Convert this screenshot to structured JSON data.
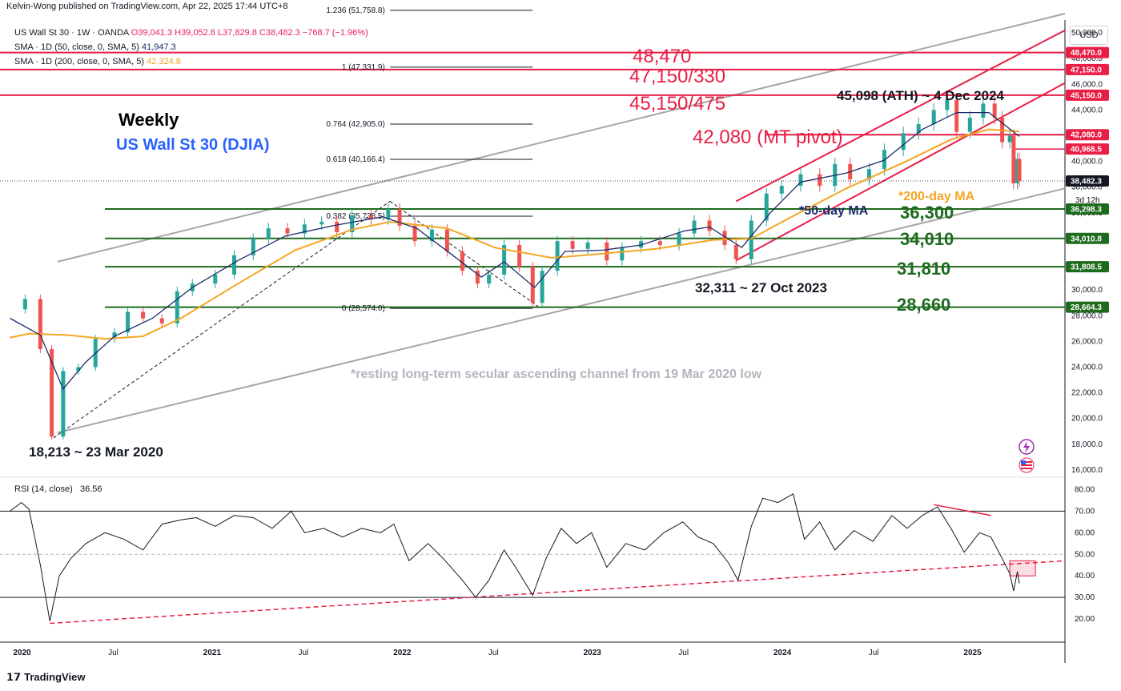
{
  "publisher": "Kelvin-Wong published on TradingView.com, Apr 22, 2025 17:44 UTC+8",
  "legend": {
    "symbol_line": "US Wall St 30 · 1W · OANDA",
    "ohlc": [
      "O39,041.3",
      "H39,052.8",
      "L37,829.8",
      "C38,482.3",
      "−768.7 (−1.96%)"
    ],
    "sma50_label": "SMA · 1D (50, close, 0, SMA, 5)",
    "sma50_value": "41,947.3",
    "sma200_label": "SMA · 1D (200, close, 0, SMA, 5)",
    "sma200_value": "42,324.8",
    "rsi_label": "RSI (14, close)",
    "rsi_value": "36.56"
  },
  "currency": "USD",
  "brand": "TradingView",
  "colors": {
    "up": "#26a69a",
    "down": "#ef5350",
    "sma50": "#1d2c6b",
    "sma200": "#f5a623",
    "resistance": "#e91e46",
    "support": "#1e6b1e",
    "channel": "#a6a6a6"
  },
  "annotations": {
    "weekly": "Weekly",
    "instrument": "US Wall St 30 (DJIA)",
    "low_2020": "18,213 ~ 23 Mar 2020",
    "low_2023": "32,311 ~ 27 Oct 2023",
    "ath": "45,098 (ATH) ~ 4 Dec 2024",
    "sma50_note": "*50-day MA",
    "sma200_note": "*200-day MA",
    "channel_note": "*resting long-term secular ascending channel from 19 Mar 2020 low",
    "r1": "48,470",
    "r2": "47,150/330",
    "r3": "45,150/475",
    "pivot": "42,080 (MT pivot)",
    "s1": "36,300",
    "s2": "34,010",
    "s3": "31,810",
    "s4": "28,660",
    "countdown": "3d 12h"
  },
  "chart_data": {
    "type": "candlestick",
    "symbol": "US Wall St 30",
    "timeframe": "1W",
    "y_ticks": [
      16000,
      18000,
      20000,
      22000,
      24000,
      26000,
      28000,
      30000,
      32000,
      34000,
      36000,
      38000,
      40000,
      42000,
      44000,
      46000,
      48000,
      50000
    ],
    "x_ticks": [
      "2020",
      "Jul",
      "2021",
      "Jul",
      "2022",
      "Jul",
      "2023",
      "Jul",
      "2024",
      "Jul",
      "2025"
    ],
    "ylim": [
      15500,
      51000
    ],
    "close_series": [
      [
        2020.0,
        28500
      ],
      [
        2020.08,
        29300
      ],
      [
        2020.16,
        25400
      ],
      [
        2020.22,
        18600
      ],
      [
        2020.28,
        23700
      ],
      [
        2020.36,
        24000
      ],
      [
        2020.45,
        26200
      ],
      [
        2020.55,
        26700
      ],
      [
        2020.62,
        28300
      ],
      [
        2020.7,
        27800
      ],
      [
        2020.8,
        27400
      ],
      [
        2020.88,
        29900
      ],
      [
        2020.96,
        30500
      ],
      [
        2021.08,
        31200
      ],
      [
        2021.18,
        32700
      ],
      [
        2021.28,
        34000
      ],
      [
        2021.36,
        34800
      ],
      [
        2021.46,
        34400
      ],
      [
        2021.55,
        35100
      ],
      [
        2021.64,
        35300
      ],
      [
        2021.72,
        34500
      ],
      [
        2021.8,
        35800
      ],
      [
        2021.9,
        35500
      ],
      [
        2021.99,
        36300
      ],
      [
        2022.05,
        35000
      ],
      [
        2022.13,
        33800
      ],
      [
        2022.22,
        34700
      ],
      [
        2022.3,
        33000
      ],
      [
        2022.38,
        31500
      ],
      [
        2022.46,
        30500
      ],
      [
        2022.52,
        31200
      ],
      [
        2022.6,
        33500
      ],
      [
        2022.68,
        31800
      ],
      [
        2022.75,
        29000
      ],
      [
        2022.8,
        31500
      ],
      [
        2022.88,
        33800
      ],
      [
        2022.96,
        33200
      ],
      [
        2023.04,
        33700
      ],
      [
        2023.14,
        32300
      ],
      [
        2023.22,
        33300
      ],
      [
        2023.32,
        33800
      ],
      [
        2023.42,
        33500
      ],
      [
        2023.52,
        34400
      ],
      [
        2023.6,
        35400
      ],
      [
        2023.68,
        34600
      ],
      [
        2023.76,
        33500
      ],
      [
        2023.82,
        32400
      ],
      [
        2023.9,
        35400
      ],
      [
        2023.98,
        37500
      ],
      [
        2024.06,
        38100
      ],
      [
        2024.16,
        39000
      ],
      [
        2024.26,
        38100
      ],
      [
        2024.34,
        39800
      ],
      [
        2024.42,
        38600
      ],
      [
        2024.52,
        39400
      ],
      [
        2024.6,
        40900
      ],
      [
        2024.7,
        42200
      ],
      [
        2024.78,
        42900
      ],
      [
        2024.86,
        44000
      ],
      [
        2024.93,
        44800
      ],
      [
        2024.98,
        42300
      ],
      [
        2025.05,
        43400
      ],
      [
        2025.12,
        44500
      ],
      [
        2025.18,
        43400
      ],
      [
        2025.22,
        41500
      ],
      [
        2025.26,
        42000
      ],
      [
        2025.28,
        38300
      ],
      [
        2025.3,
        40200
      ],
      [
        2025.31,
        38482
      ]
    ],
    "sma50_series": [
      [
        2020.0,
        27800
      ],
      [
        2020.16,
        26500
      ],
      [
        2020.28,
        22300
      ],
      [
        2020.4,
        24400
      ],
      [
        2020.55,
        26400
      ],
      [
        2020.75,
        27800
      ],
      [
        2020.96,
        30200
      ],
      [
        2021.2,
        32300
      ],
      [
        2021.45,
        34200
      ],
      [
        2021.7,
        35000
      ],
      [
        2021.96,
        35700
      ],
      [
        2022.14,
        34800
      ],
      [
        2022.32,
        32800
      ],
      [
        2022.48,
        31000
      ],
      [
        2022.6,
        32200
      ],
      [
        2022.76,
        30200
      ],
      [
        2022.92,
        33000
      ],
      [
        2023.12,
        33100
      ],
      [
        2023.32,
        33500
      ],
      [
        2023.55,
        34600
      ],
      [
        2023.68,
        34900
      ],
      [
        2023.85,
        33300
      ],
      [
        2024.0,
        36000
      ],
      [
        2024.16,
        38400
      ],
      [
        2024.4,
        39100
      ],
      [
        2024.6,
        40100
      ],
      [
        2024.8,
        42500
      ],
      [
        2024.98,
        43800
      ],
      [
        2025.15,
        43800
      ],
      [
        2025.31,
        41947
      ]
    ],
    "sma200_series": [
      [
        2020.0,
        26300
      ],
      [
        2020.1,
        26600
      ],
      [
        2020.3,
        26500
      ],
      [
        2020.5,
        26200
      ],
      [
        2020.7,
        26400
      ],
      [
        2020.9,
        27800
      ],
      [
        2021.2,
        30500
      ],
      [
        2021.5,
        33100
      ],
      [
        2021.8,
        34700
      ],
      [
        2022.0,
        35300
      ],
      [
        2022.3,
        34800
      ],
      [
        2022.55,
        33300
      ],
      [
        2022.85,
        32500
      ],
      [
        2023.1,
        32800
      ],
      [
        2023.4,
        33200
      ],
      [
        2023.7,
        33900
      ],
      [
        2023.9,
        34000
      ],
      [
        2024.1,
        35600
      ],
      [
        2024.4,
        37900
      ],
      [
        2024.7,
        39900
      ],
      [
        2024.95,
        41700
      ],
      [
        2025.15,
        42500
      ],
      [
        2025.31,
        42324
      ]
    ],
    "rsi_ylim": [
      10,
      85
    ],
    "rsi_ticks": [
      20,
      30,
      40,
      50,
      60,
      70,
      80
    ],
    "rsi_levels": [
      70,
      50,
      30
    ],
    "rsi_series": [
      [
        2020.0,
        70
      ],
      [
        2020.06,
        74
      ],
      [
        2020.1,
        71
      ],
      [
        2020.16,
        45
      ],
      [
        2020.21,
        19
      ],
      [
        2020.26,
        40
      ],
      [
        2020.32,
        48
      ],
      [
        2020.4,
        55
      ],
      [
        2020.5,
        60
      ],
      [
        2020.6,
        57
      ],
      [
        2020.7,
        52
      ],
      [
        2020.8,
        64
      ],
      [
        2020.9,
        66
      ],
      [
        2020.98,
        67
      ],
      [
        2021.08,
        63
      ],
      [
        2021.18,
        68
      ],
      [
        2021.28,
        67
      ],
      [
        2021.38,
        62
      ],
      [
        2021.48,
        70
      ],
      [
        2021.55,
        60
      ],
      [
        2021.65,
        62
      ],
      [
        2021.75,
        58
      ],
      [
        2021.85,
        62
      ],
      [
        2021.95,
        60
      ],
      [
        2022.02,
        64
      ],
      [
        2022.1,
        47
      ],
      [
        2022.2,
        55
      ],
      [
        2022.28,
        48
      ],
      [
        2022.38,
        38
      ],
      [
        2022.45,
        30
      ],
      [
        2022.52,
        38
      ],
      [
        2022.6,
        52
      ],
      [
        2022.66,
        44
      ],
      [
        2022.75,
        31
      ],
      [
        2022.82,
        48
      ],
      [
        2022.9,
        62
      ],
      [
        2022.98,
        55
      ],
      [
        2023.06,
        60
      ],
      [
        2023.14,
        44
      ],
      [
        2023.24,
        55
      ],
      [
        2023.34,
        52
      ],
      [
        2023.44,
        60
      ],
      [
        2023.54,
        65
      ],
      [
        2023.62,
        58
      ],
      [
        2023.7,
        55
      ],
      [
        2023.78,
        46
      ],
      [
        2023.83,
        38
      ],
      [
        2023.9,
        63
      ],
      [
        2023.96,
        76
      ],
      [
        2024.04,
        74
      ],
      [
        2024.12,
        78
      ],
      [
        2024.18,
        57
      ],
      [
        2024.26,
        65
      ],
      [
        2024.34,
        52
      ],
      [
        2024.44,
        61
      ],
      [
        2024.54,
        56
      ],
      [
        2024.64,
        68
      ],
      [
        2024.72,
        62
      ],
      [
        2024.8,
        68
      ],
      [
        2024.88,
        72
      ],
      [
        2024.95,
        62
      ],
      [
        2025.02,
        51
      ],
      [
        2025.1,
        60
      ],
      [
        2025.16,
        58
      ],
      [
        2025.22,
        48
      ],
      [
        2025.26,
        41
      ],
      [
        2025.28,
        33
      ],
      [
        2025.3,
        42
      ],
      [
        2025.31,
        36.56
      ]
    ]
  },
  "price_axis_labels": {
    "r1": "48,470.0",
    "r2": "47,150.0",
    "r3": "45,150.0",
    "pivot": "42,080.0",
    "near": "40,968.5",
    "last": "38,482.3",
    "s1": "36,298.3",
    "s2": "34,010.8",
    "s3": "31,808.5",
    "s4": "28,664.3"
  },
  "fib_labels": [
    "1.236 (51,758.8)",
    "1 (47,331.9)",
    "0.764 (42,905.0)",
    "0.618 (40,166.4)",
    "0.382 (35,738.5)",
    "0 (28,574.0)"
  ],
  "rsi_tick_labels": [
    "80.00",
    "70.00",
    "60.00",
    "50.00",
    "40.00",
    "30.00",
    "20.00"
  ],
  "price_tick_labels": [
    "50,000.0",
    "48,000.0",
    "46,000.0",
    "44,000.0",
    "42,000.0",
    "40,000.0",
    "38,000.0",
    "36,000.0",
    "34,000.0",
    "32,000.0",
    "30,000.0",
    "28,000.0",
    "26,000.0",
    "24,000.0",
    "22,000.0",
    "20,000.0",
    "18,000.0",
    "16,000.0"
  ]
}
